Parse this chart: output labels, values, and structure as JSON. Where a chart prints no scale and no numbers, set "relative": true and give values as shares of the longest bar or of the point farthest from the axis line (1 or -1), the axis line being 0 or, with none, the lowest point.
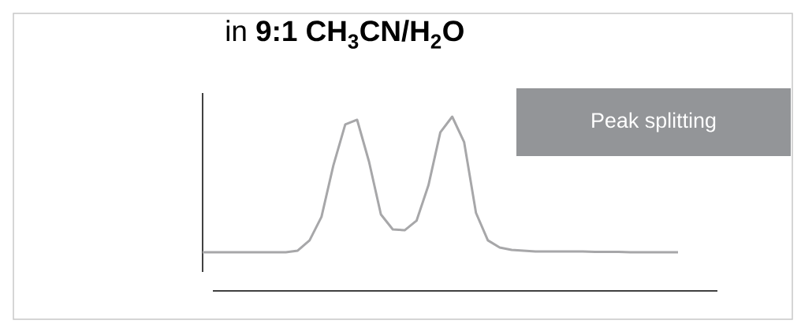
{
  "chart_data": {
    "type": "line",
    "title": "in **9:1 CH$_{3}$CN/H$_{2}$O**",
    "relative": true,
    "color": "#a7a7a9",
    "annotations": [
      "Peak splitting"
    ],
    "categories": [
      null,
      null,
      null,
      null,
      null,
      null,
      null,
      null,
      null,
      null,
      null,
      null,
      null,
      null,
      null,
      null,
      null,
      null,
      null,
      null,
      null,
      null,
      null,
      null,
      null,
      null,
      null,
      null,
      null,
      null,
      null,
      null,
      null,
      null,
      null,
      null,
      null,
      null,
      null,
      null,
      null
    ],
    "values": [
      0.222,
      0.222,
      0.222,
      0.222,
      0.222,
      0.222,
      0.222,
      0.222,
      0.231,
      0.29,
      0.425,
      0.72,
      0.955,
      0.982,
      0.742,
      0.439,
      0.353,
      0.348,
      0.403,
      0.606,
      0.91,
      1.0,
      0.855,
      0.448,
      0.29,
      0.249,
      0.235,
      0.231,
      0.226,
      0.226,
      0.226,
      0.226,
      0.226,
      0.224,
      0.224,
      0.224,
      0.222,
      0.222,
      0.222,
      0.222,
      0.222
    ]
  }
}
